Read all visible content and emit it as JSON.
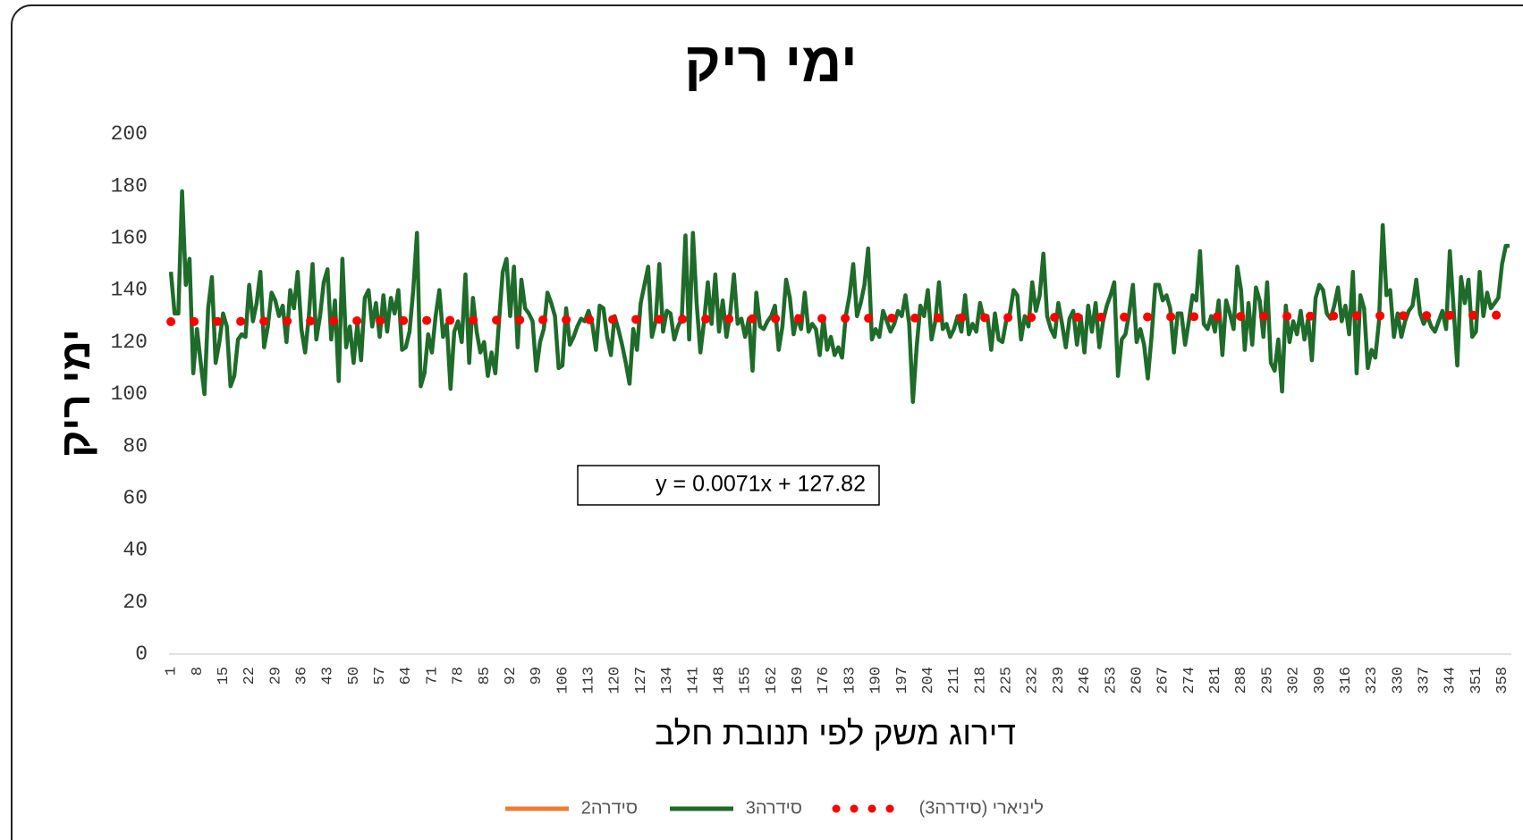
{
  "chart_data": {
    "type": "line",
    "title": "ימי ריק",
    "y_label": "ימי ריק",
    "x_label": "דירוג משק לפי תנובת חלב",
    "ylim": [
      0,
      200
    ],
    "yticks": [
      0,
      20,
      40,
      60,
      80,
      100,
      120,
      140,
      160,
      180,
      200
    ],
    "grid": false,
    "categories": [
      1,
      null,
      null,
      null,
      null,
      null,
      null,
      8,
      null,
      null,
      null,
      null,
      null,
      null,
      15,
      null,
      null,
      null,
      null,
      null,
      null,
      22,
      null,
      null,
      null,
      null,
      null,
      null,
      29,
      null,
      null,
      null,
      null,
      null,
      null,
      36,
      null,
      null,
      null,
      null,
      null,
      null,
      43,
      null,
      null,
      null,
      null,
      null,
      null,
      50,
      null,
      null,
      null,
      null,
      null,
      null,
      57,
      null,
      null,
      null,
      null,
      null,
      null,
      64,
      null,
      null,
      null,
      null,
      null,
      null,
      71,
      null,
      null,
      null,
      null,
      null,
      null,
      78,
      null,
      null,
      null,
      null,
      null,
      null,
      85,
      null,
      null,
      null,
      null,
      null,
      null,
      92,
      null,
      null,
      null,
      null,
      null,
      null,
      99,
      null,
      null,
      null,
      null,
      null,
      null,
      106,
      null,
      null,
      null,
      null,
      null,
      null,
      113,
      null,
      null,
      null,
      null,
      null,
      null,
      120,
      null,
      null,
      null,
      null,
      null,
      null,
      127,
      null,
      null,
      null,
      null,
      null,
      null,
      134,
      null,
      null,
      null,
      null,
      null,
      null,
      141,
      null,
      null,
      null,
      null,
      null,
      null,
      148,
      null,
      null,
      null,
      null,
      null,
      null,
      155,
      null,
      null,
      null,
      null,
      null,
      null,
      162,
      null,
      null,
      null,
      null,
      null,
      null,
      169,
      null,
      null,
      null,
      null,
      null,
      null,
      176,
      null,
      null,
      null,
      null,
      null,
      null,
      183,
      null,
      null,
      null,
      null,
      null,
      null,
      190,
      null,
      null,
      null,
      null,
      null,
      null,
      197,
      null,
      null,
      null,
      null,
      null,
      null,
      204,
      null,
      null,
      null,
      null,
      null,
      null,
      211,
      null,
      null,
      null,
      null,
      null,
      null,
      218,
      null,
      null,
      null,
      null,
      null,
      null,
      225,
      null,
      null,
      null,
      null,
      null,
      null,
      232,
      null,
      null,
      null,
      null,
      null,
      null,
      239,
      null,
      null,
      null,
      null,
      null,
      null,
      246,
      null,
      null,
      null,
      null,
      null,
      null,
      253,
      null,
      null,
      null,
      null,
      null,
      null,
      260,
      null,
      null,
      null,
      null,
      null,
      null,
      267,
      null,
      null,
      null,
      null,
      null,
      null,
      274,
      null,
      null,
      null,
      null,
      null,
      null,
      281,
      null,
      null,
      null,
      null,
      null,
      null,
      288,
      null,
      null,
      null,
      null,
      null,
      null,
      295,
      null,
      null,
      null,
      null,
      null,
      null,
      302,
      null,
      null,
      null,
      null,
      null,
      null,
      309,
      null,
      null,
      null,
      null,
      null,
      null,
      316,
      null,
      null,
      null,
      null,
      null,
      null,
      323,
      null,
      null,
      null,
      null,
      null,
      null,
      330,
      null,
      null,
      null,
      null,
      null,
      null,
      337,
      null,
      null,
      null,
      null,
      null,
      null,
      344,
      null,
      null,
      null,
      null,
      null,
      null,
      351,
      null,
      null,
      null,
      null,
      null,
      null,
      358,
      null,
      null
    ],
    "series": [
      {
        "name": "סידרה2",
        "color": "#ed7d31",
        "values": [
          null,
          null,
          null,
          null,
          null,
          null,
          null,
          null,
          null,
          null,
          null,
          null,
          null,
          null,
          null,
          null,
          null,
          null,
          null,
          null,
          null,
          null,
          null,
          null,
          null,
          null,
          null,
          null,
          null,
          null,
          null,
          null,
          null,
          null,
          null,
          null,
          null,
          null,
          null,
          null,
          null,
          null,
          null,
          null,
          null,
          null,
          null,
          null,
          null,
          null,
          null,
          null,
          null,
          null,
          null,
          null,
          null,
          null,
          null,
          null,
          null,
          null,
          null,
          null,
          null,
          null,
          null,
          null,
          null,
          null,
          null,
          null,
          null,
          null,
          null,
          null,
          null,
          null,
          null,
          null,
          null,
          null,
          null,
          null,
          null,
          null,
          null,
          null,
          null,
          null,
          null,
          null,
          null,
          null,
          null,
          null,
          null,
          null,
          null,
          null,
          null,
          null,
          null,
          null,
          null,
          null,
          null,
          null,
          null,
          null,
          null,
          null,
          null,
          null,
          null,
          null,
          null,
          null,
          null,
          null,
          null,
          null,
          null,
          null,
          null,
          null,
          null,
          null,
          null,
          null,
          null,
          null,
          null,
          null,
          null,
          null,
          null,
          null,
          null,
          null,
          null,
          null,
          null,
          null,
          null,
          null,
          null,
          null,
          null,
          null,
          null,
          null,
          null,
          null,
          null,
          null,
          null,
          null,
          null,
          null,
          null,
          null,
          null,
          null,
          null,
          null,
          null,
          null,
          null,
          null,
          null,
          null,
          null,
          null,
          null,
          null,
          null,
          null,
          null,
          null,
          null,
          null,
          null,
          null,
          null,
          null,
          null,
          null,
          null,
          null,
          null,
          null,
          null,
          null,
          null,
          null,
          null,
          null,
          null,
          null,
          null,
          null,
          null,
          null,
          null,
          null,
          null,
          null,
          null,
          null,
          null,
          null,
          null,
          null,
          null,
          null,
          null,
          null,
          null,
          null,
          null,
          null,
          null,
          null,
          null,
          null,
          null,
          null,
          null,
          null,
          null,
          null,
          null,
          null,
          null,
          null,
          null,
          null,
          null,
          null,
          null,
          null,
          null,
          null,
          null,
          null,
          null,
          null,
          null,
          null,
          null,
          null,
          null,
          null,
          null,
          null,
          null,
          null,
          null,
          null,
          null,
          null,
          null,
          null,
          null,
          null,
          null,
          null,
          null,
          null,
          null,
          null,
          null,
          null,
          null,
          null,
          null,
          null,
          null,
          null,
          null,
          null,
          null,
          null,
          null,
          null,
          null,
          null,
          null,
          null,
          null,
          null,
          null,
          null,
          null,
          null,
          null,
          null,
          null,
          null,
          null,
          null,
          null,
          null,
          null,
          null,
          null,
          null,
          null,
          null,
          null,
          null,
          null,
          null,
          null,
          null,
          null,
          null,
          null,
          null,
          null,
          null,
          null,
          null,
          null,
          null,
          null,
          null,
          null,
          null,
          null,
          null,
          null,
          null,
          null,
          null,
          null,
          null,
          null,
          null,
          null,
          null,
          null,
          null,
          null,
          null,
          null,
          null,
          null,
          null,
          null,
          null,
          null,
          null,
          null,
          null,
          null,
          null,
          null,
          null
        ]
      },
      {
        "name": "סידרה3",
        "color": "#1e6b2a",
        "values": [
          147,
          131,
          131,
          178,
          142,
          152,
          108,
          125,
          112,
          100,
          133,
          145,
          112,
          120,
          131,
          126,
          103,
          107,
          121,
          123,
          122,
          142,
          128,
          135,
          147,
          118,
          126,
          139,
          136,
          130,
          134,
          120,
          140,
          133,
          147,
          125,
          116,
          130,
          150,
          121,
          130,
          143,
          148,
          121,
          136,
          105,
          152,
          118,
          126,
          112,
          127,
          113,
          137,
          140,
          126,
          135,
          122,
          138,
          124,
          137,
          131,
          140,
          117,
          118,
          124,
          140,
          162,
          103,
          108,
          123,
          116,
          130,
          140,
          122,
          127,
          102,
          124,
          128,
          120,
          146,
          112,
          137,
          124,
          116,
          120,
          107,
          116,
          108,
          128,
          147,
          152,
          130,
          149,
          118,
          144,
          133,
          131,
          128,
          109,
          120,
          125,
          139,
          135,
          130,
          110,
          111,
          133,
          119,
          122,
          126,
          129,
          128,
          132,
          127,
          117,
          134,
          133,
          122,
          115,
          130,
          125,
          119,
          112,
          104,
          125,
          117,
          135,
          142,
          149,
          122,
          128,
          150,
          124,
          132,
          131,
          121,
          126,
          129,
          161,
          121,
          162,
          135,
          116,
          128,
          143,
          127,
          146,
          124,
          136,
          122,
          131,
          146,
          127,
          129,
          122,
          129,
          109,
          139,
          126,
          125,
          128,
          130,
          134,
          117,
          126,
          144,
          137,
          123,
          130,
          125,
          139,
          124,
          127,
          125,
          115,
          129,
          117,
          122,
          115,
          118,
          114,
          130,
          138,
          150,
          130,
          135,
          142,
          156,
          121,
          125,
          122,
          132,
          128,
          124,
          127,
          132,
          130,
          138,
          127,
          97,
          118,
          134,
          130,
          140,
          121,
          128,
          143,
          125,
          127,
          122,
          125,
          130,
          124,
          138,
          123,
          127,
          124,
          135,
          129,
          130,
          117,
          131,
          121,
          120,
          128,
          131,
          140,
          138,
          121,
          130,
          126,
          143,
          132,
          138,
          154,
          130,
          125,
          122,
          135,
          127,
          118,
          129,
          132,
          119,
          130,
          116,
          134,
          124,
          135,
          118,
          128,
          134,
          138,
          143,
          107,
          121,
          123,
          131,
          142,
          120,
          125,
          119,
          106,
          122,
          142,
          142,
          136,
          138,
          133,
          116,
          131,
          131,
          119,
          128,
          138,
          136,
          155,
          127,
          125,
          130,
          124,
          136,
          115,
          136,
          131,
          125,
          149,
          140,
          117,
          135,
          119,
          141,
          136,
          122,
          143,
          112,
          109,
          121,
          101,
          134,
          120,
          128,
          123,
          132,
          121,
          129,
          113,
          137,
          142,
          140,
          131,
          129,
          134,
          141,
          128,
          134,
          123,
          147,
          108,
          138,
          133,
          110,
          117,
          114,
          128,
          165,
          138,
          140,
          122,
          131,
          122,
          128,
          132,
          134,
          144,
          131,
          127,
          130,
          126,
          124,
          128,
          132,
          125,
          155,
          133,
          111,
          145,
          135,
          144,
          122,
          124,
          147,
          130,
          139,
          133,
          135,
          137,
          150,
          157,
          157
        ]
      }
    ],
    "trendline": {
      "name": "ליניארי (סידרה3)",
      "color": "#ff0000",
      "slope": 0.0071,
      "intercept": 127.82,
      "label": "y = 0.0071x + 127.82"
    }
  }
}
